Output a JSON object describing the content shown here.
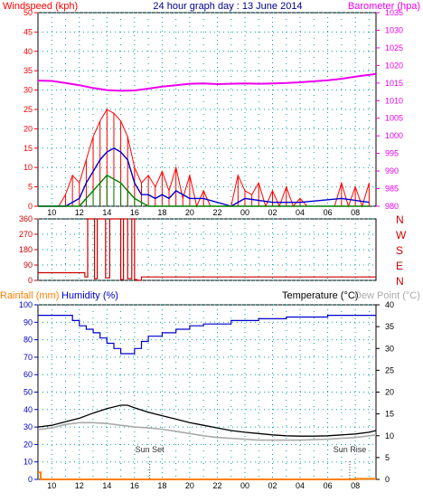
{
  "header": {
    "wind_label": "Windspeed (kph)",
    "title": "24 hour graph day : 13 June 2014",
    "baro_label": "Barometer (hpa)"
  },
  "bottom_header": {
    "rain_label": "Rainfall (mm)",
    "humidity_label": "Humidity (%)",
    "temp_label": "Temperature (°C)",
    "dew_label": "Dew Point (°C)"
  },
  "annotations": {
    "sunset": "Sun Set",
    "sunrise": "Sun Rise"
  },
  "x_ticks": [
    "10",
    "12",
    "14",
    "16",
    "18",
    "20",
    "22",
    "00",
    "02",
    "04",
    "06",
    "08"
  ],
  "colors": {
    "wind_gust": "#ff0000",
    "wind_avg": "#0000cc",
    "wind_low": "#008000",
    "barometer": "#ee00ee",
    "direction": "#cc0000",
    "humidity": "#0000cc",
    "temperature": "#000000",
    "dewpoint": "#aaaaaa",
    "rainfall": "#ff8000",
    "axis": "#008080",
    "grid": "#00a0a0"
  },
  "chart_data": [
    {
      "type": "line",
      "title": "24 hour graph day : 13 June 2014",
      "ylabel": "Windspeed (kph)",
      "ylim": [
        0,
        50
      ],
      "y_ticks": [
        0,
        5,
        10,
        15,
        20,
        25,
        30,
        35,
        40,
        45,
        50
      ],
      "y2label": "Barometer (hpa)",
      "y2lim": [
        980,
        1035
      ],
      "y2_ticks": [
        980,
        985,
        990,
        995,
        1000,
        1005,
        1010,
        1015,
        1020,
        1025,
        1030,
        1035
      ],
      "x_range_hours": [
        9,
        33.5
      ],
      "series": [
        {
          "name": "gust",
          "x": [
            9,
            10.5,
            11,
            11.5,
            12,
            12.5,
            13,
            13.5,
            14,
            14.5,
            15,
            15.5,
            16,
            16.5,
            17,
            17.5,
            18,
            18.5,
            19,
            19.5,
            20,
            20.5,
            21,
            21.5,
            22,
            22.5,
            23,
            23.5,
            24,
            24.5,
            25,
            25.5,
            26,
            26.5,
            27,
            27.5,
            28,
            28.5,
            29,
            29.5,
            30,
            30.5,
            31,
            31.5,
            32,
            32.5,
            33
          ],
          "values": [
            0,
            0,
            3,
            8,
            6,
            12,
            18,
            22,
            25,
            24,
            22,
            18,
            10,
            6,
            8,
            5,
            9,
            4,
            10,
            2,
            8,
            0,
            4,
            0,
            0,
            0,
            0,
            8,
            4,
            3,
            6,
            0,
            4,
            0,
            5,
            0,
            2,
            0,
            0,
            0,
            0,
            0,
            6,
            0,
            5,
            0,
            6
          ]
        },
        {
          "name": "average",
          "x": [
            9,
            11,
            12,
            12.5,
            13,
            13.5,
            14,
            14.5,
            15,
            15.5,
            16,
            16.5,
            17,
            17.5,
            18,
            18.5,
            19,
            20,
            21,
            23,
            24,
            26,
            28,
            31,
            33
          ],
          "values": [
            0,
            0,
            2,
            6,
            9,
            12,
            14,
            15,
            14,
            12,
            6,
            3,
            3,
            2,
            3,
            2,
            4,
            2,
            2,
            0,
            2,
            1,
            1,
            2,
            1
          ]
        },
        {
          "name": "low",
          "x": [
            9,
            12,
            12.5,
            13,
            13.5,
            14,
            14.5,
            15,
            15.5,
            16,
            16.5,
            17,
            33
          ],
          "values": [
            0,
            0,
            2,
            4,
            6,
            8,
            7,
            6,
            4,
            2,
            1,
            0,
            0
          ]
        },
        {
          "name": "barometer",
          "x": [
            9,
            10,
            11,
            12,
            13,
            14,
            15,
            16,
            17,
            18,
            19,
            20,
            21,
            22,
            23,
            24,
            25,
            26,
            27,
            28,
            29,
            30,
            31,
            32,
            33.5
          ],
          "values": [
            1015.7,
            1015.6,
            1015.0,
            1014.4,
            1013.6,
            1013.0,
            1012.8,
            1012.9,
            1013.4,
            1014.0,
            1014.4,
            1014.8,
            1014.9,
            1014.7,
            1014.8,
            1014.9,
            1014.8,
            1014.9,
            1015.0,
            1015.2,
            1015.5,
            1015.8,
            1016.2,
            1016.8,
            1017.6
          ]
        }
      ]
    },
    {
      "type": "line",
      "ylabel": "Wind direction",
      "ylim": [
        0,
        360
      ],
      "y_ticks": [
        0,
        90,
        180,
        270,
        360
      ],
      "compass": [
        "N",
        "W",
        "S",
        "E",
        "N"
      ],
      "x_range_hours": [
        9,
        33.5
      ],
      "series": [
        {
          "name": "direction",
          "x": [
            9,
            12.3,
            12.4,
            12.6,
            12.7,
            13.1,
            13.3,
            13.6,
            13.9,
            14.2,
            14.5,
            15.0,
            15.2,
            15.5,
            15.8,
            16.0,
            16.2,
            16.5,
            33.5
          ],
          "values": [
            45,
            45,
            20,
            360,
            360,
            10,
            360,
            360,
            15,
            360,
            360,
            5,
            360,
            10,
            360,
            5,
            0,
            20,
            20
          ]
        }
      ]
    },
    {
      "type": "line",
      "ylabel": "Humidity (%)",
      "ylim": [
        0,
        100
      ],
      "y_ticks": [
        0,
        10,
        20,
        30,
        40,
        50,
        60,
        70,
        80,
        90,
        100
      ],
      "y2label": "Temperature (°C)",
      "y2lim": [
        0,
        40
      ],
      "y2_ticks": [
        0,
        5,
        10,
        15,
        20,
        25,
        30,
        35,
        40
      ],
      "x_range_hours": [
        9,
        33.5
      ],
      "annotations": [
        {
          "text": "Sun Set",
          "x_hour": 17.1
        },
        {
          "text": "Sun Rise",
          "x_hour": 31.6
        }
      ],
      "series": [
        {
          "name": "humidity",
          "x": [
            9,
            10,
            11,
            11.5,
            12,
            12.5,
            13,
            13.5,
            14,
            14.5,
            15,
            15.5,
            16,
            16.5,
            17,
            18,
            19,
            20,
            21,
            22,
            23,
            24,
            25,
            26,
            27,
            28,
            29,
            30,
            31,
            32,
            33,
            33.5
          ],
          "values": [
            94,
            94,
            94,
            91,
            88,
            86,
            84,
            81,
            78,
            75,
            72,
            72,
            75,
            79,
            82,
            84,
            86,
            88,
            89,
            89,
            91,
            91,
            92,
            92,
            93,
            93,
            93,
            94,
            94,
            94,
            94,
            94
          ]
        },
        {
          "name": "temperature",
          "x": [
            9,
            10,
            11,
            12,
            13,
            14,
            15,
            15.5,
            16,
            17,
            18,
            19,
            20,
            21,
            22,
            23,
            24,
            25,
            26,
            27,
            28,
            29,
            30,
            31,
            32,
            33,
            33.5
          ],
          "values": [
            12.0,
            12.4,
            13.2,
            14.0,
            15.2,
            16.2,
            17.0,
            17.0,
            16.4,
            15.4,
            14.6,
            13.8,
            13.0,
            12.4,
            11.8,
            11.2,
            10.8,
            10.5,
            10.2,
            10.0,
            9.9,
            9.9,
            10.0,
            10.2,
            10.4,
            10.8,
            11.2
          ]
        },
        {
          "name": "dewpoint",
          "x": [
            9,
            10,
            11,
            12,
            13,
            14,
            15,
            16,
            17,
            18,
            19,
            20,
            21,
            22,
            23,
            24,
            25,
            26,
            27,
            28,
            29,
            30,
            31,
            32,
            33,
            33.5
          ],
          "values": [
            11.4,
            11.8,
            12.6,
            13.0,
            13.0,
            12.8,
            12.4,
            12.0,
            11.8,
            11.5,
            11.0,
            10.5,
            10.0,
            9.6,
            9.4,
            9.2,
            9.0,
            9.0,
            9.0,
            9.0,
            9.1,
            9.2,
            9.4,
            9.6,
            10.0,
            10.2
          ]
        },
        {
          "name": "rainfall",
          "x": [
            9,
            9.15,
            9.2,
            9.4,
            32,
            33.5
          ],
          "values": [
            4,
            4,
            0,
            0,
            0.3,
            0.3
          ]
        }
      ]
    }
  ]
}
